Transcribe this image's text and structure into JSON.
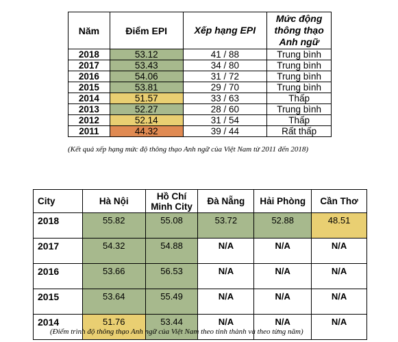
{
  "table1": {
    "headers": {
      "year": "Năm",
      "score": "Điểm EPI",
      "rank": "Xếp hạng EPI",
      "level": "Mức động thông thạo Anh ngữ"
    },
    "rows": [
      {
        "year": "2018",
        "score": "53.12",
        "rank": "41 / 88",
        "level": "Trung bình",
        "color": "#a7b98d"
      },
      {
        "year": "2017",
        "score": "53.43",
        "rank": "34 / 80",
        "level": "Trung bình",
        "color": "#a7b98d"
      },
      {
        "year": "2016",
        "score": "54.06",
        "rank": "31 / 72",
        "level": "Trung bình",
        "color": "#a7b98d"
      },
      {
        "year": "2015",
        "score": "53.81",
        "rank": "29 / 70",
        "level": "Trung bình",
        "color": "#a7b98d"
      },
      {
        "year": "2014",
        "score": "51.57",
        "rank": "33 / 63",
        "level": "Thấp",
        "color": "#e9cf72"
      },
      {
        "year": "2013",
        "score": "52.27",
        "rank": "28 / 60",
        "level": "Trung bình",
        "color": "#a7b98d"
      },
      {
        "year": "2012",
        "score": "52.14",
        "rank": "31 / 54",
        "level": "Thấp",
        "color": "#e9cf72"
      },
      {
        "year": "2011",
        "score": "44.32",
        "rank": "39 / 44",
        "level": "Rất thấp",
        "color": "#e08a52"
      }
    ],
    "caption": "(Kết quả xếp hạng mức độ thông thạo Anh ngữ của Việt Nam từ 2011 đến 2018)"
  },
  "table2": {
    "headers": {
      "city": "City",
      "hanoi": "Hà Nội",
      "hcm": "Hồ Chí Minh City",
      "danang": "Đà Nẵng",
      "haiphong": "Hải Phòng",
      "cantho": "Cần Thơ"
    },
    "rows": [
      {
        "year": "2018",
        "hanoi": "55.82",
        "hcm": "55.08",
        "danang": "53.72",
        "haiphong": "52.88",
        "cantho": "48.51"
      },
      {
        "year": "2017",
        "hanoi": "54.32",
        "hcm": "54.88",
        "danang": "N/A",
        "haiphong": "N/A",
        "cantho": "N/A"
      },
      {
        "year": "2016",
        "hanoi": "53.66",
        "hcm": "56.53",
        "danang": "N/A",
        "haiphong": "N/A",
        "cantho": "N/A"
      },
      {
        "year": "2015",
        "hanoi": "53.64",
        "hcm": "55.49",
        "danang": "N/A",
        "haiphong": "N/A",
        "cantho": "N/A"
      },
      {
        "year": "2014",
        "hanoi": "51.76",
        "hcm": "53.44",
        "danang": "N/A",
        "haiphong": "N/A",
        "cantho": "N/A"
      }
    ],
    "caption": "(Điểm trình độ thông thạo Anh ngữ của Việt Nam theo tỉnh thành và theo từng năm)"
  },
  "colors": {
    "average": "#a7b98d",
    "low": "#e9cf72",
    "very_low": "#e08a52"
  }
}
